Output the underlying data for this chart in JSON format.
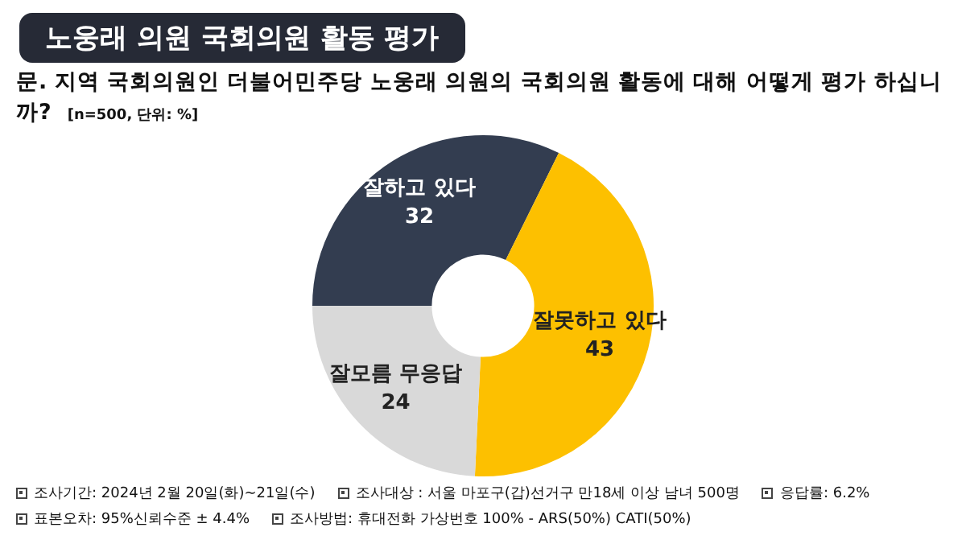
{
  "chart_data": {
    "type": "donut",
    "title": "노웅래 의원 국회의원 활동 평가",
    "subtitle": "문. 지역 국회의원인 더불어민주당 노웅래 의원의 국회의원 활동에 대해 어떻게 평가 하십니까?",
    "categories": [
      "잘하고 있다",
      "잘못하고 있다",
      "잘모름 무응답"
    ],
    "values": [
      32,
      43,
      24
    ],
    "colors": [
      "#333d50",
      "#fdc000",
      "#d9d9d9"
    ],
    "data_labels": true,
    "legend": false,
    "annotations": [
      "[n=500, 단위: %]",
      "조사기간: 2024년  2월 20일(화)~21일(수)",
      "조사대상 : 서울 마포구(갑)선거구 만18세 이상 남녀 500명",
      "응답률: 6.2%",
      "표본오차: 95%신뢰수준 ± 4.4%",
      "조사방법: 휴대전화 가상번호 100% - ARS(50%) CATI(50%)"
    ]
  }
}
